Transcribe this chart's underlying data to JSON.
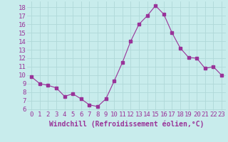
{
  "x": [
    0,
    1,
    2,
    3,
    4,
    5,
    6,
    7,
    8,
    9,
    10,
    11,
    12,
    13,
    14,
    15,
    16,
    17,
    18,
    19,
    20,
    21,
    22,
    23
  ],
  "y": [
    9.8,
    9.0,
    8.8,
    8.5,
    7.5,
    7.8,
    7.2,
    6.5,
    6.3,
    7.2,
    9.3,
    11.5,
    14.0,
    16.0,
    17.0,
    18.2,
    17.2,
    15.0,
    13.2,
    12.1,
    12.0,
    10.8,
    11.0,
    10.0
  ],
  "line_color": "#993399",
  "marker": "s",
  "marker_size": 2.5,
  "xlabel": "Windchill (Refroidissement éolien,°C)",
  "ylim": [
    5.8,
    18.7
  ],
  "yticks": [
    6,
    7,
    8,
    9,
    10,
    11,
    12,
    13,
    14,
    15,
    16,
    17,
    18
  ],
  "xlim": [
    -0.5,
    23.5
  ],
  "xticks": [
    0,
    1,
    2,
    3,
    4,
    5,
    6,
    7,
    8,
    9,
    10,
    11,
    12,
    13,
    14,
    15,
    16,
    17,
    18,
    19,
    20,
    21,
    22,
    23
  ],
  "background_color": "#c8ecec",
  "grid_color": "#b0d8d8",
  "tick_label_color": "#993399",
  "xlabel_color": "#993399",
  "xlabel_fontsize": 7.0,
  "tick_fontsize": 6.5
}
